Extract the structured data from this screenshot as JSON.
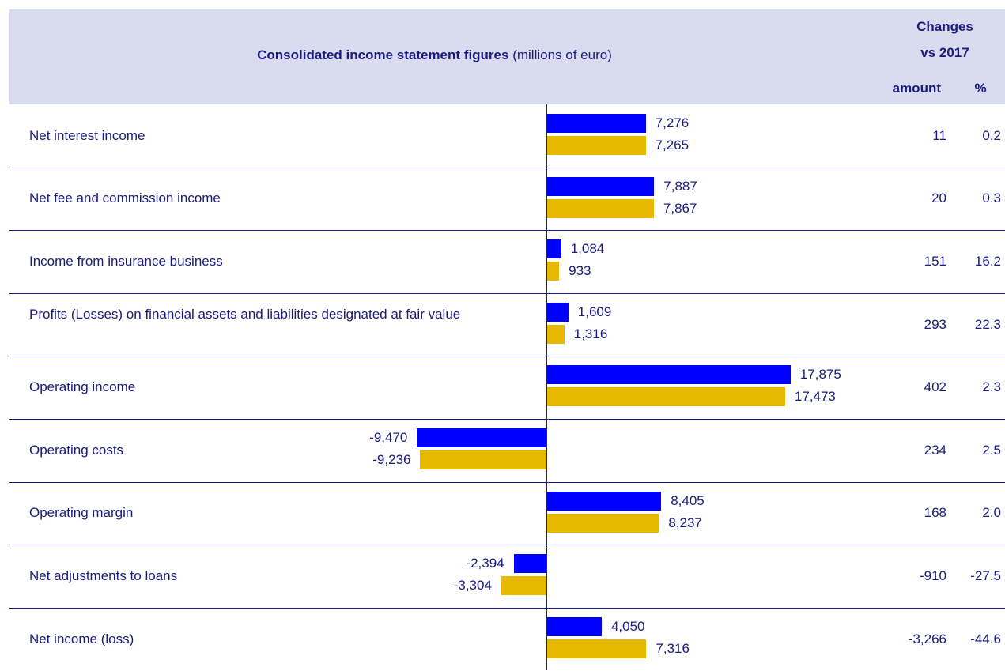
{
  "header": {
    "title_bold": "Consolidated income statement figures",
    "title_rest": "(millions of euro)",
    "changes": "Changes",
    "vs": "vs 2017",
    "amount": "amount",
    "pct": "%"
  },
  "chart_data": {
    "type": "bar",
    "orientation": "horizontal",
    "categories": [
      "Net interest income",
      "Net fee and commission income",
      "Income from insurance business",
      "Profits (Losses) on financial assets and liabilities designated at fair value",
      "Operating income",
      "Operating costs",
      "Operating margin",
      "Net adjustments to loans",
      "Net income (loss)"
    ],
    "xlim": [
      -18000,
      18000
    ],
    "series": [
      {
        "color": "#0000ff",
        "values": [
          7276,
          7887,
          1084,
          1609,
          17875,
          -9470,
          8405,
          -2394,
          4050
        ],
        "value_labels": [
          "7,276",
          "7,887",
          "1,084",
          "1,609",
          "17,875",
          "-9,470",
          "8,405",
          "-2,394",
          "4,050"
        ]
      },
      {
        "color": "#e6b800",
        "values": [
          7265,
          7867,
          933,
          1316,
          17473,
          -9236,
          8237,
          -3304,
          7316
        ],
        "value_labels": [
          "7,265",
          "7,867",
          "933",
          "1,316",
          "17,473",
          "-9,236",
          "8,237",
          "-3,304",
          "7,316"
        ]
      }
    ],
    "amount": [
      "11",
      "20",
      "151",
      "293",
      "402",
      "234",
      "168",
      "-910",
      "-3,266"
    ],
    "pct": [
      "0.2",
      "0.3",
      "16.2",
      "22.3",
      "2.3",
      "2.5",
      "2.0",
      "-27.5",
      "-44.6"
    ]
  }
}
